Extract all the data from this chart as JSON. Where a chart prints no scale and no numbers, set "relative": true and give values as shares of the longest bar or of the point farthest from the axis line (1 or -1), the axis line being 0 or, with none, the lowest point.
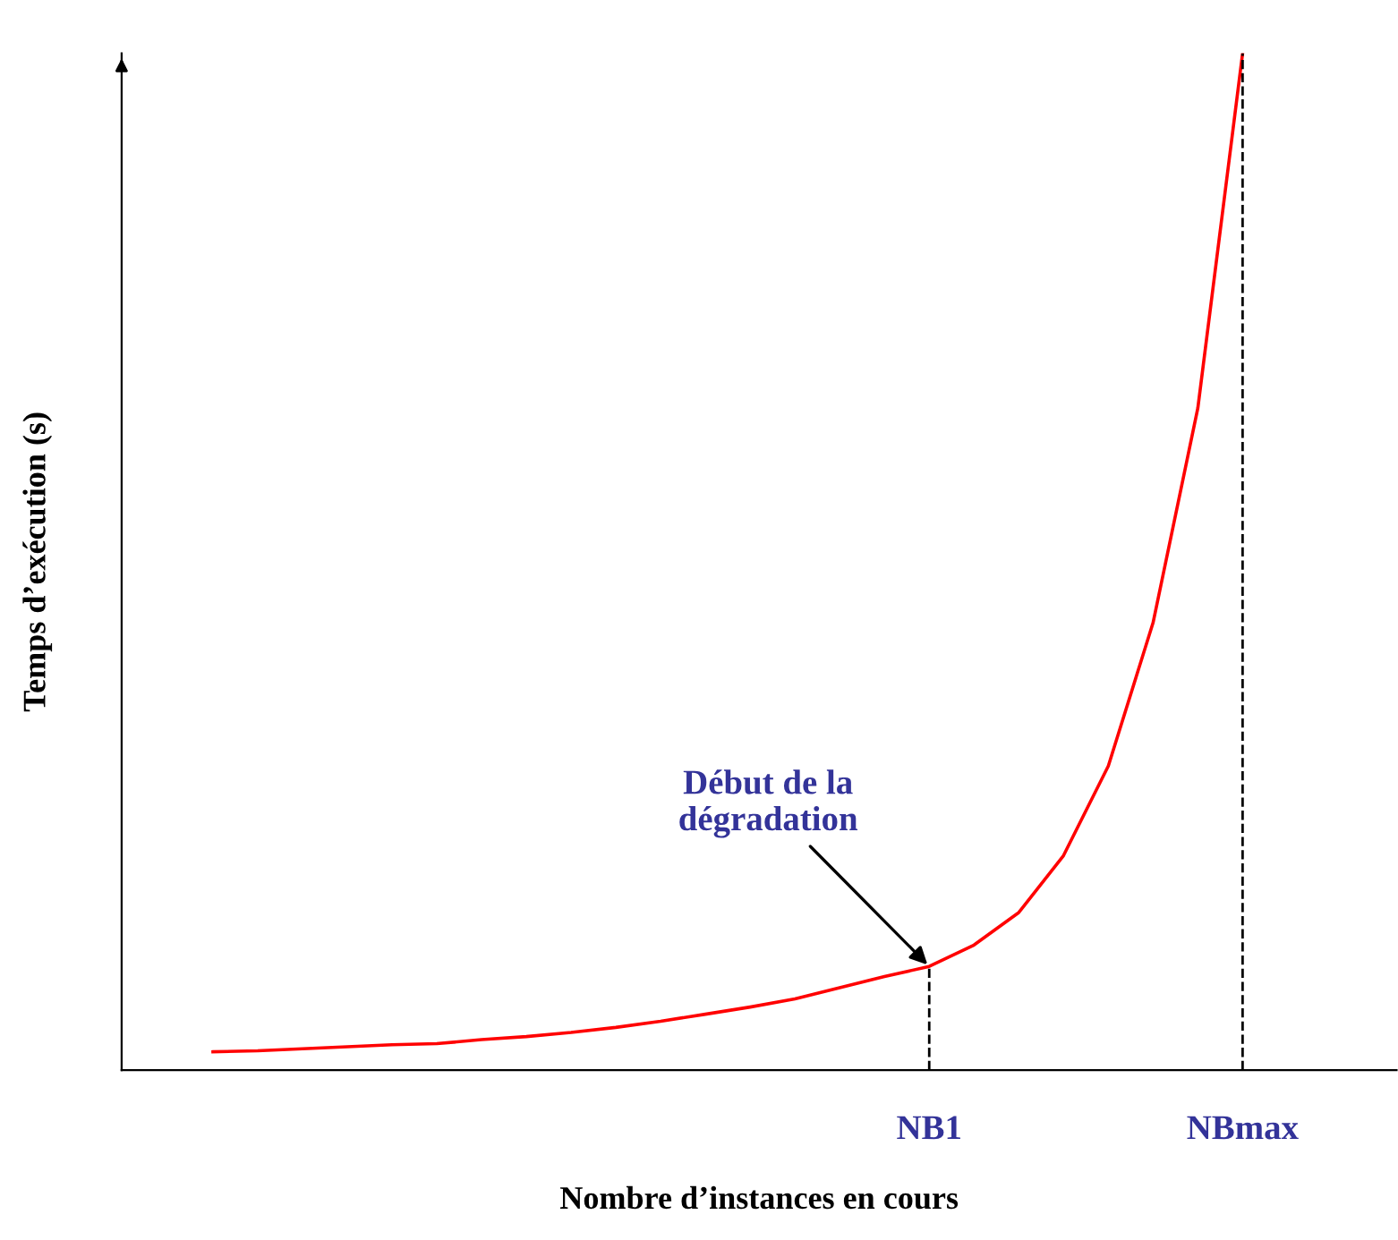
{
  "chart_data": {
    "type": "line",
    "relative": true,
    "xlabel": "Nombre d’instances en cours",
    "ylabel": "Temps d’exécution (s)",
    "categories": [
      null,
      null,
      null,
      null,
      null,
      null,
      null,
      null,
      null,
      null,
      null,
      null,
      null,
      null,
      null,
      null,
      "NB1",
      null,
      null,
      null,
      null,
      null,
      null,
      "NBmax"
    ],
    "series": [
      {
        "color": "#ff0000",
        "values": [
          0.018,
          0.019,
          0.021,
          0.023,
          0.025,
          0.026,
          0.03,
          0.033,
          0.037,
          0.042,
          0.048,
          0.055,
          0.062,
          0.07,
          0.081,
          0.092,
          0.102,
          0.123,
          0.155,
          0.211,
          0.299,
          0.44,
          0.651,
          1
        ]
      }
    ],
    "ref_lines": [
      {
        "axis": "x",
        "value": "NB1",
        "color": "#000000",
        "line_style": "dashed"
      },
      {
        "axis": "x",
        "value": "NBmax",
        "color": "#000000",
        "line_style": "dashed"
      }
    ],
    "annotations": [
      {
        "text": "Début de la\ndégradation",
        "x": "NB1",
        "y": 0.102
      }
    ],
    "grid": false,
    "legend": false,
    "marker": "none",
    "line_style": "solid"
  }
}
